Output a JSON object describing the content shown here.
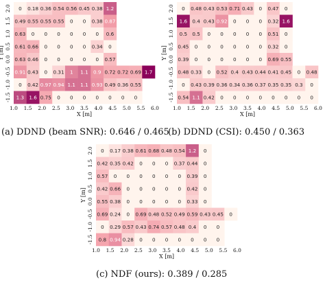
{
  "chart_data": [
    {
      "type": "heatmap",
      "caption": "(a) DDND (beam SNR): 0.646 / 0.465",
      "xlabel": "X [m]",
      "ylabel": "Y [m]",
      "xticks": [
        "1.0",
        "1.5",
        "2.0",
        "2.5",
        "3.0",
        "3.5",
        "4.0",
        "4.5",
        "5.0",
        "5.5",
        "6.0"
      ],
      "yticks": [
        "2.0",
        "1.5",
        "1.0",
        "0.5",
        "0.0",
        "-0.5",
        "-1.0",
        "-1.5"
      ],
      "xlim": [
        1.0,
        6.0
      ],
      "ylim": [
        -1.5,
        2.0
      ],
      "color_scale": {
        "min": 0,
        "max": 1.7,
        "low": "#fff4ed",
        "high": "#8b005a"
      },
      "rows": [
        [
          "0",
          "0.18",
          "0.36",
          "0.54",
          "0.56",
          "0.45",
          "0.38",
          "1.2",
          ""
        ],
        [
          "0.49",
          "0.55",
          "0.55",
          "0.55",
          "0",
          "0",
          "0.38",
          "0.87",
          ""
        ],
        [
          "0.63",
          "0",
          "0",
          "0",
          "0",
          "0",
          "0",
          "0.6",
          ""
        ],
        [
          "0.61",
          "0.66",
          "0",
          "0",
          "0",
          "0",
          "0.34",
          "0",
          ""
        ],
        [
          "0.63",
          "0.46",
          "0",
          "0",
          "0",
          "0",
          "0",
          "0.57",
          ""
        ],
        [
          "0.91",
          "0.43",
          "0",
          "0.31",
          "1",
          "1.1",
          "0.9",
          "0.72",
          "0.72",
          "0.69",
          "1.7"
        ],
        [
          "0",
          "0.42",
          "0.97",
          "0.94",
          "1.1",
          "1.1",
          "0.93",
          "0.49",
          "0.36",
          "0.55",
          ""
        ],
        [
          "1.3",
          "1.6",
          "0.75",
          "0",
          "0",
          "0",
          "0",
          "0",
          "0",
          "0",
          ""
        ]
      ]
    },
    {
      "type": "heatmap",
      "caption": "(b) DDND (CSI): 0.450 / 0.363",
      "xlabel": "X [m]",
      "ylabel": "Y [m]",
      "xticks": [
        "1.0",
        "1.5",
        "2.0",
        "2.5",
        "3.0",
        "3.5",
        "4.0",
        "4.5",
        "5.0",
        "5.5",
        "6.0"
      ],
      "yticks": [
        "2.0",
        "1.5",
        "1.0",
        "0.5",
        "0.0",
        "-0.5",
        "-1.0",
        "-1.5"
      ],
      "xlim": [
        1.0,
        6.0
      ],
      "ylim": [
        -1.5,
        2.0
      ],
      "color_scale": {
        "min": 0,
        "max": 1.7,
        "low": "#fff4ed",
        "high": "#8b005a"
      },
      "rows": [
        [
          "0",
          "0.48",
          "0.43",
          "0.53",
          "0.71",
          "0.43",
          "0",
          "0.47",
          "0"
        ],
        [
          "1.6",
          "0.4",
          "0.43",
          "0.92",
          "0",
          "0",
          "0",
          "0.32",
          "1.6"
        ],
        [
          "0.5",
          "0.5",
          "0",
          "0",
          "0",
          "0",
          "0",
          "0.51",
          "0"
        ],
        [
          "0.45",
          "0",
          "0",
          "0",
          "0",
          "0",
          "0",
          "0.32",
          "0"
        ],
        [
          "0.39",
          "0",
          "0",
          "0",
          "0",
          "0",
          "0",
          "0.69",
          "0.55"
        ],
        [
          "0.48",
          "0.33",
          "0",
          "0.52",
          "0.4",
          "0.43",
          "0.44",
          "0.41",
          "0.45",
          "0",
          "0.48"
        ],
        [
          "0",
          "0.43",
          "0.39",
          "0.36",
          "0.34",
          "0.36",
          "0.37",
          "0.35",
          "0.35",
          "0.3",
          "0"
        ],
        [
          "0.54",
          "1.1",
          "0.42",
          "0",
          "0",
          "0",
          "0",
          "0",
          "0",
          "0",
          "0"
        ]
      ]
    },
    {
      "type": "heatmap",
      "caption": "(c) NDF (ours): 0.389 / 0.285",
      "xlabel": "X [m]",
      "ylabel": "Y [m]",
      "xticks": [
        "1.0",
        "1.5",
        "2.0",
        "2.5",
        "3.0",
        "3.5",
        "4.0",
        "4.5",
        "5.0",
        "5.5",
        "6.0"
      ],
      "yticks": [
        "2.0",
        "1.5",
        "1.0",
        "0.5",
        "0.0",
        "-0.5",
        "-1.0",
        "-1.5"
      ],
      "xlim": [
        1.0,
        6.0
      ],
      "ylim": [
        -1.5,
        2.0
      ],
      "color_scale": {
        "min": 0,
        "max": 1.7,
        "low": "#fff4ed",
        "high": "#8b005a"
      },
      "rows": [
        [
          "0",
          "0.17",
          "0.38",
          "0.61",
          "0.68",
          "0.48",
          "0.54",
          "1.2",
          "0"
        ],
        [
          "0.42",
          "0.35",
          "0.42",
          "0",
          "0",
          "0",
          "0.37",
          "0.44",
          "0"
        ],
        [
          "0.57",
          "0",
          "0",
          "0",
          "0",
          "0",
          "0",
          "0.39",
          "0"
        ],
        [
          "0.42",
          "0.66",
          "0",
          "0",
          "0",
          "0",
          "0",
          "0.42",
          "0"
        ],
        [
          "0.55",
          "0.38",
          "0",
          "0",
          "0",
          "0",
          "0",
          "0.33",
          "0"
        ],
        [
          "0.69",
          "0.24",
          "0",
          "0.69",
          "0.48",
          "0.52",
          "0.49",
          "0.59",
          "0.43",
          "0.45",
          "0"
        ],
        [
          "0",
          "0.29",
          "0.57",
          "0.43",
          "0.74",
          "0.57",
          "0.48",
          "0.4",
          "0",
          "0",
          ""
        ],
        [
          "0.8",
          "0.94",
          "0.28",
          "0",
          "0",
          "0",
          "0",
          "0",
          "0",
          "0",
          ""
        ]
      ]
    }
  ]
}
